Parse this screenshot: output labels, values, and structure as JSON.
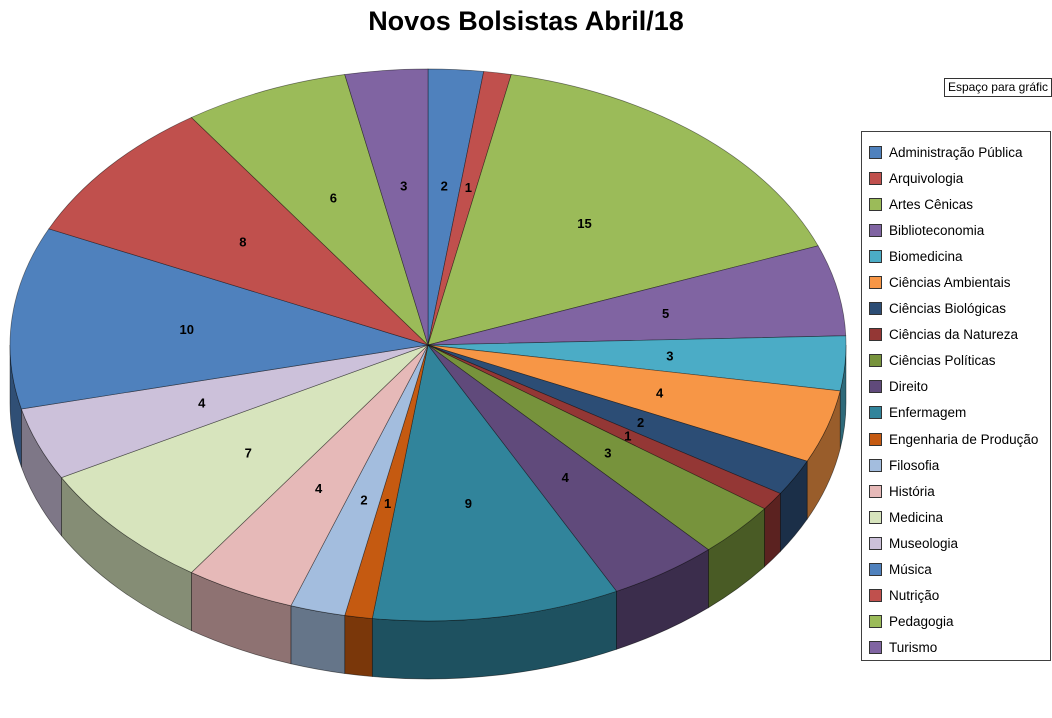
{
  "title": "Novos Bolsistas Abril/18",
  "textbox": {
    "label": "Espaço para gráfic"
  },
  "chart_data": {
    "type": "pie",
    "style": "3d",
    "title": "Novos Bolsistas Abril/18",
    "legend_position": "right",
    "data_labels": "values",
    "start_angle_deg": 0,
    "direction": "clockwise",
    "total": 94,
    "categories": [
      "Administração Pública",
      "Arquivologia",
      "Artes Cênicas",
      "Biblioteconomia",
      "Biomedicina",
      "Ciências Ambientais",
      "Ciências Biológicas",
      "Ciências da Natureza",
      "Ciências Políticas",
      "Direito",
      "Enfermagem",
      "Engenharia de Produção",
      "Filosofia",
      "História",
      "Medicina",
      "Museologia",
      "Música",
      "Nutrição",
      "Pedagogia",
      "Turismo"
    ],
    "values": [
      2,
      1,
      15,
      5,
      3,
      4,
      2,
      1,
      3,
      4,
      9,
      1,
      2,
      4,
      7,
      4,
      10,
      8,
      6,
      3
    ],
    "colors": [
      "#4F81BD",
      "#C0504D",
      "#9BBB59",
      "#8064A2",
      "#4BACC6",
      "#F79646",
      "#2C4D75",
      "#943735",
      "#77933C",
      "#604A7B",
      "#31849B",
      "#C55A11",
      "#A3BDDE",
      "#E6B9B8",
      "#D7E4BD",
      "#CCC1DA",
      "#4F81BD",
      "#C0504D",
      "#9BBB59",
      "#8064A2"
    ]
  }
}
